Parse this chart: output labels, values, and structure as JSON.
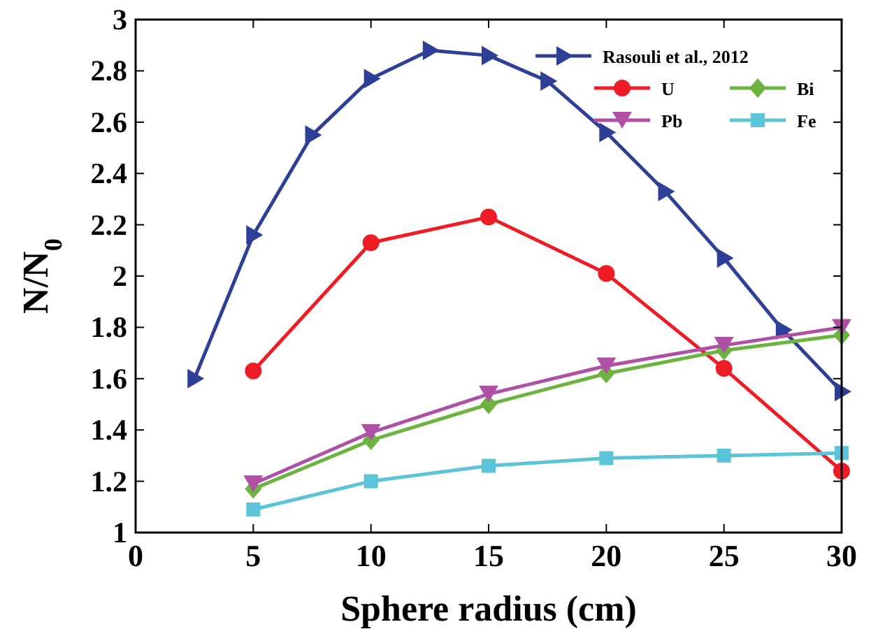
{
  "chart_data": {
    "type": "line",
    "xlabel": "Sphere radius (cm)",
    "ylabel": "N/N$_{0}$",
    "xlim": [
      0,
      30
    ],
    "xticks": [
      0,
      5,
      10,
      15,
      20,
      25,
      30
    ],
    "ylim": [
      1,
      3
    ],
    "yticks": [
      1,
      1.2,
      1.4,
      1.6,
      1.8,
      2,
      2.2,
      2.4,
      2.6,
      2.8,
      3
    ],
    "grid": false,
    "legend": "top right",
    "line_style": "solid",
    "series": [
      {
        "name": "Rasouli et al., 2012",
        "color": "#2e3f98",
        "marker": "triangle-right",
        "x": [
          2.5,
          5,
          7.5,
          10,
          12.5,
          15,
          17.5,
          20,
          22.5,
          25,
          27.5,
          30
        ],
        "values": [
          1.6,
          2.16,
          2.55,
          2.77,
          2.88,
          2.86,
          2.76,
          2.56,
          2.33,
          2.07,
          1.79,
          1.55
        ]
      },
      {
        "name": "U",
        "color": "#ee1c24",
        "marker": "circle",
        "x": [
          5,
          10,
          15,
          20,
          25,
          30
        ],
        "values": [
          1.63,
          2.13,
          2.23,
          2.01,
          1.64,
          1.24
        ]
      },
      {
        "name": "Bi",
        "color": "#6cb33f",
        "marker": "diamond",
        "x": [
          5,
          10,
          15,
          20,
          25,
          30
        ],
        "values": [
          1.17,
          1.36,
          1.5,
          1.62,
          1.71,
          1.77
        ]
      },
      {
        "name": "Pb",
        "color": "#b04fa6",
        "marker": "triangle-down",
        "x": [
          5,
          10,
          15,
          20,
          25,
          30
        ],
        "values": [
          1.19,
          1.39,
          1.54,
          1.65,
          1.73,
          1.8
        ]
      },
      {
        "name": "Fe",
        "color": "#5bc4d8",
        "marker": "square",
        "x": [
          5,
          10,
          15,
          20,
          25,
          30
        ],
        "values": [
          1.09,
          1.2,
          1.26,
          1.29,
          1.3,
          1.31
        ]
      }
    ]
  }
}
